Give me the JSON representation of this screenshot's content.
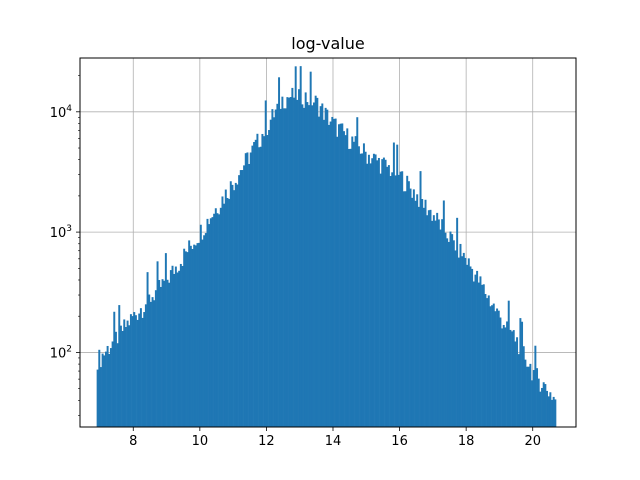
{
  "chart_data": {
    "type": "bar",
    "title": "log-value",
    "xlabel": "",
    "ylabel": "",
    "yscale": "log",
    "xlim": [
      6.4,
      21.3
    ],
    "ylim": [
      24,
      28000
    ],
    "grid": true,
    "bar_color": "#1f77b4",
    "x_ticks": [
      8,
      10,
      12,
      14,
      16,
      18,
      20
    ],
    "x_tick_labels": [
      "8",
      "10",
      "12",
      "14",
      "16",
      "18",
      "20"
    ],
    "y_ticks": [
      100,
      1000,
      10000
    ],
    "y_tick_labels": [
      {
        "base": "10",
        "exp": "2"
      },
      {
        "base": "10",
        "exp": "3"
      },
      {
        "base": "10",
        "exp": "4"
      }
    ],
    "bins": {
      "start": 6.9,
      "end": 20.7,
      "count": 276
    },
    "x": [
      7,
      8,
      9,
      10,
      11,
      12,
      12.5,
      13,
      13.5,
      14,
      15,
      16,
      17,
      18,
      19,
      19.5,
      20,
      20.7
    ],
    "values": [
      90,
      200,
      400,
      1000,
      2600,
      7500,
      13000,
      14000,
      12000,
      8000,
      4500,
      3000,
      1400,
      600,
      200,
      130,
      70,
      40
    ]
  }
}
